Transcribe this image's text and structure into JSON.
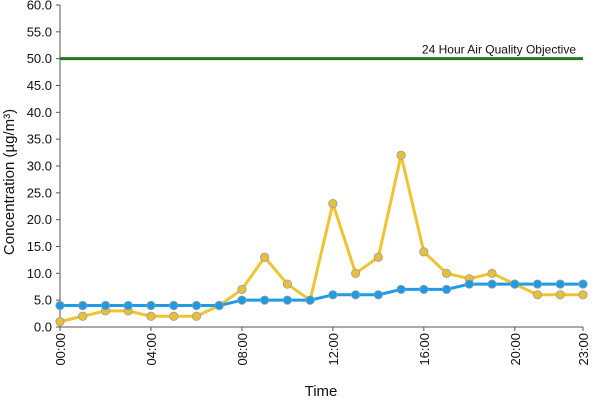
{
  "chart_data": {
    "type": "line",
    "title": "",
    "xlabel": "Time",
    "ylabel": "Concentration (µg/m³)",
    "ylim": [
      0,
      60
    ],
    "y_ticks": [
      "0.0",
      "5.0",
      "10.0",
      "15.0",
      "20.0",
      "25.0",
      "30.0",
      "35.0",
      "40.0",
      "45.0",
      "50.0",
      "55.0",
      "60.0"
    ],
    "x": [
      "00:00",
      "01:00",
      "02:00",
      "03:00",
      "04:00",
      "05:00",
      "06:00",
      "07:00",
      "08:00",
      "09:00",
      "10:00",
      "11:00",
      "12:00",
      "13:00",
      "14:00",
      "15:00",
      "16:00",
      "17:00",
      "18:00",
      "19:00",
      "20:00",
      "21:00",
      "22:00",
      "23:00"
    ],
    "x_tick_labels": [
      "00:00",
      "04:00",
      "08:00",
      "12:00",
      "16:00",
      "20:00",
      "23:00"
    ],
    "grid": false,
    "series": [
      {
        "color": "#f0c430",
        "marker_fill": "#e6c03a",
        "values": [
          1,
          2,
          3,
          3,
          2,
          2,
          2,
          4,
          7,
          13,
          8,
          5,
          23,
          10,
          13,
          32,
          14,
          10,
          9,
          10,
          8,
          6,
          6,
          6
        ]
      },
      {
        "color": "#1e9be6",
        "marker_fill": "#1e9be6",
        "values": [
          4,
          4,
          4,
          4,
          4,
          4,
          4,
          4,
          5,
          5,
          5,
          5,
          6,
          6,
          6,
          7,
          7,
          7,
          8,
          8,
          8,
          8,
          8,
          8
        ]
      }
    ],
    "reference_line": {
      "label": "24 Hour Air Quality Objective",
      "value": 50,
      "color": "#1f7a1f"
    }
  }
}
